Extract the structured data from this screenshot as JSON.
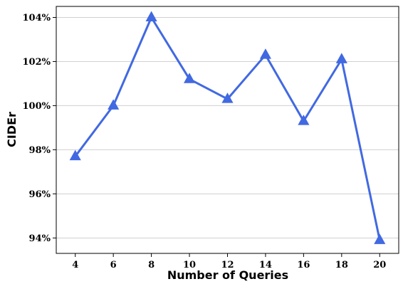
{
  "chart_data": {
    "type": "line",
    "title": "",
    "xlabel": "Number of Queries",
    "ylabel": "CIDEr",
    "x": [
      4,
      6,
      8,
      10,
      12,
      14,
      16,
      18,
      20
    ],
    "series": [
      {
        "values": [
          97.7,
          100.0,
          104.0,
          101.2,
          100.3,
          102.3,
          99.3,
          102.1,
          93.9
        ]
      }
    ],
    "xticks": [
      "4",
      "6",
      "8",
      "10",
      "12",
      "14",
      "16",
      "18",
      "20"
    ],
    "yticks": [
      94,
      96,
      98,
      100,
      102,
      104
    ],
    "ytick_labels": [
      "94%",
      "96%",
      "98%",
      "100%",
      "102%",
      "104%"
    ],
    "xlim": [
      3,
      21
    ],
    "ylim": [
      93.3,
      104.5
    ],
    "grid": "horizontal",
    "line_color": "#4169e1",
    "marker": "triangle"
  }
}
